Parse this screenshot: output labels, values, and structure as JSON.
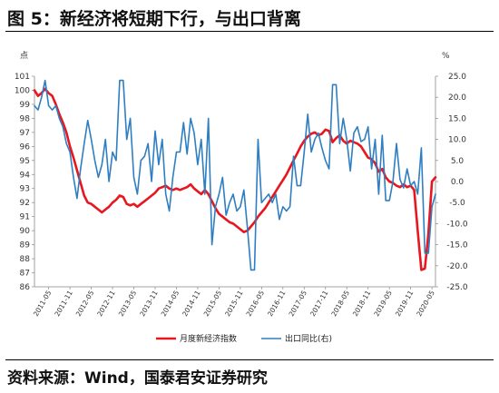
{
  "header": {
    "title": "图 5：新经济将短期下行，与出口背离"
  },
  "footer": {
    "source": "资料来源：Wind，国泰君安证券研究"
  },
  "chart_data": {
    "type": "line",
    "left_axis": {
      "unit_label": "点",
      "range": [
        86,
        101
      ],
      "ticks": [
        "86",
        "87",
        "88",
        "89",
        "90",
        "91",
        "92",
        "93",
        "94",
        "95",
        "96",
        "97",
        "98",
        "99",
        "100",
        "101"
      ]
    },
    "right_axis": {
      "unit_label": "%",
      "range": [
        -25,
        25
      ],
      "ticks": [
        "25.0",
        "20.0",
        "15.0",
        "10.0",
        "5.0",
        "0.0",
        "-5.0",
        "-10.0",
        "-15.0",
        "-20.0",
        "-25.0"
      ]
    },
    "x_tick_labels": [
      "2011-05",
      "2011-11",
      "2012-05",
      "2012-11",
      "2013-05",
      "2013-11",
      "2014-05",
      "2014-11",
      "2015-05",
      "2015-11",
      "2016-05",
      "2016-11",
      "2017-05",
      "2017-11",
      "2018-05",
      "2018-11",
      "2019-05",
      "2019-11",
      "2020-05"
    ],
    "x_range": [
      "2011-01",
      "2020-06"
    ],
    "series": [
      {
        "name": "月度新经济指数",
        "axis": "left",
        "color": "#e8161e",
        "points": [
          [
            "2011-01",
            100.0
          ],
          [
            "2011-02",
            99.6
          ],
          [
            "2011-03",
            99.8
          ],
          [
            "2011-04",
            100.1
          ],
          [
            "2011-05",
            99.8
          ],
          [
            "2011-06",
            99.6
          ],
          [
            "2011-07",
            99.0
          ],
          [
            "2011-08",
            98.3
          ],
          [
            "2011-09",
            97.7
          ],
          [
            "2011-10",
            97.0
          ],
          [
            "2011-11",
            96.0
          ],
          [
            "2011-12",
            95.2
          ],
          [
            "2012-01",
            94.3
          ],
          [
            "2012-02",
            93.4
          ],
          [
            "2012-03",
            92.5
          ],
          [
            "2012-04",
            92.0
          ],
          [
            "2012-05",
            91.9
          ],
          [
            "2012-06",
            91.7
          ],
          [
            "2012-07",
            91.5
          ],
          [
            "2012-08",
            91.3
          ],
          [
            "2012-09",
            91.5
          ],
          [
            "2012-10",
            91.7
          ],
          [
            "2012-11",
            92.0
          ],
          [
            "2012-12",
            92.2
          ],
          [
            "2013-01",
            92.5
          ],
          [
            "2013-02",
            92.4
          ],
          [
            "2013-03",
            91.9
          ],
          [
            "2013-04",
            91.8
          ],
          [
            "2013-05",
            91.9
          ],
          [
            "2013-06",
            91.7
          ],
          [
            "2013-07",
            91.9
          ],
          [
            "2013-08",
            92.1
          ],
          [
            "2013-09",
            92.3
          ],
          [
            "2013-10",
            92.5
          ],
          [
            "2013-11",
            92.7
          ],
          [
            "2013-12",
            93.0
          ],
          [
            "2014-01",
            93.1
          ],
          [
            "2014-02",
            93.2
          ],
          [
            "2014-03",
            93.0
          ],
          [
            "2014-04",
            92.9
          ],
          [
            "2014-05",
            93.0
          ],
          [
            "2014-06",
            92.9
          ],
          [
            "2014-07",
            93.0
          ],
          [
            "2014-08",
            93.1
          ],
          [
            "2014-09",
            93.3
          ],
          [
            "2014-10",
            93.0
          ],
          [
            "2014-11",
            92.8
          ],
          [
            "2014-12",
            92.6
          ],
          [
            "2015-01",
            92.9
          ],
          [
            "2015-02",
            92.6
          ],
          [
            "2015-03",
            92.1
          ],
          [
            "2015-04",
            91.6
          ],
          [
            "2015-05",
            91.2
          ],
          [
            "2015-06",
            91.0
          ],
          [
            "2015-07",
            90.8
          ],
          [
            "2015-08",
            90.6
          ],
          [
            "2015-09",
            90.5
          ],
          [
            "2015-10",
            90.3
          ],
          [
            "2015-11",
            90.1
          ],
          [
            "2015-12",
            89.9
          ],
          [
            "2016-01",
            90.0
          ],
          [
            "2016-02",
            90.3
          ],
          [
            "2016-03",
            90.6
          ],
          [
            "2016-04",
            91.0
          ],
          [
            "2016-05",
            91.3
          ],
          [
            "2016-06",
            91.6
          ],
          [
            "2016-07",
            92.0
          ],
          [
            "2016-08",
            92.4
          ],
          [
            "2016-09",
            92.8
          ],
          [
            "2016-10",
            93.2
          ],
          [
            "2016-11",
            93.6
          ],
          [
            "2016-12",
            94.0
          ],
          [
            "2017-01",
            94.5
          ],
          [
            "2017-02",
            95.0
          ],
          [
            "2017-03",
            95.5
          ],
          [
            "2017-04",
            96.0
          ],
          [
            "2017-05",
            96.4
          ],
          [
            "2017-06",
            96.7
          ],
          [
            "2017-07",
            96.9
          ],
          [
            "2017-08",
            97.0
          ],
          [
            "2017-09",
            96.8
          ],
          [
            "2017-10",
            96.9
          ],
          [
            "2017-11",
            97.2
          ],
          [
            "2017-12",
            97.1
          ],
          [
            "2018-01",
            96.3
          ],
          [
            "2018-02",
            96.6
          ],
          [
            "2018-03",
            96.8
          ],
          [
            "2018-04",
            96.4
          ],
          [
            "2018-05",
            96.2
          ],
          [
            "2018-06",
            96.4
          ],
          [
            "2018-07",
            96.3
          ],
          [
            "2018-08",
            96.2
          ],
          [
            "2018-09",
            96.0
          ],
          [
            "2018-10",
            95.6
          ],
          [
            "2018-11",
            95.2
          ],
          [
            "2018-12",
            95.1
          ],
          [
            "2019-01",
            94.8
          ],
          [
            "2019-02",
            94.2
          ],
          [
            "2019-03",
            94.4
          ],
          [
            "2019-04",
            93.8
          ],
          [
            "2019-05",
            93.5
          ],
          [
            "2019-06",
            93.4
          ],
          [
            "2019-07",
            93.2
          ],
          [
            "2019-08",
            93.1
          ],
          [
            "2019-09",
            93.3
          ],
          [
            "2019-10",
            93.1
          ],
          [
            "2019-11",
            93.2
          ],
          [
            "2019-12",
            92.9
          ],
          [
            "2020-01",
            90.0
          ],
          [
            "2020-02",
            87.2
          ],
          [
            "2020-03",
            87.3
          ],
          [
            "2020-04",
            89.8
          ],
          [
            "2020-05",
            93.5
          ],
          [
            "2020-06",
            93.8
          ]
        ]
      },
      {
        "name": "出口同比(右)",
        "axis": "right",
        "color": "#2e7ec2",
        "points": [
          [
            "2011-01",
            18.0
          ],
          [
            "2011-02",
            17.0
          ],
          [
            "2011-03",
            20.0
          ],
          [
            "2011-04",
            24.0
          ],
          [
            "2011-05",
            18.0
          ],
          [
            "2011-06",
            17.0
          ],
          [
            "2011-07",
            18.0
          ],
          [
            "2011-08",
            15.0
          ],
          [
            "2011-09",
            13.0
          ],
          [
            "2011-10",
            9.0
          ],
          [
            "2011-11",
            7.0
          ],
          [
            "2011-12",
            1.0
          ],
          [
            "2012-01",
            -4.0
          ],
          [
            "2012-02",
            3.0
          ],
          [
            "2012-03",
            9.0
          ],
          [
            "2012-04",
            14.5
          ],
          [
            "2012-05",
            10.0
          ],
          [
            "2012-06",
            5.0
          ],
          [
            "2012-07",
            1.0
          ],
          [
            "2012-08",
            4.0
          ],
          [
            "2012-09",
            10.0
          ],
          [
            "2012-10",
            0.0
          ],
          [
            "2012-11",
            7.0
          ],
          [
            "2012-12",
            5.0
          ],
          [
            "2013-01",
            24.0
          ],
          [
            "2013-02",
            24.0
          ],
          [
            "2013-03",
            10.0
          ],
          [
            "2013-04",
            15.0
          ],
          [
            "2013-05",
            1.0
          ],
          [
            "2013-06",
            -3.0
          ],
          [
            "2013-07",
            5.0
          ],
          [
            "2013-08",
            6.0
          ],
          [
            "2013-09",
            9.0
          ],
          [
            "2013-10",
            0.0
          ],
          [
            "2013-11",
            12.0
          ],
          [
            "2013-12",
            4.0
          ],
          [
            "2014-01",
            10.0
          ],
          [
            "2014-02",
            -3.0
          ],
          [
            "2014-03",
            -7.0
          ],
          [
            "2014-04",
            1.0
          ],
          [
            "2014-05",
            7.0
          ],
          [
            "2014-06",
            7.0
          ],
          [
            "2014-07",
            14.0
          ],
          [
            "2014-08",
            6.5
          ],
          [
            "2014-09",
            15.0
          ],
          [
            "2014-10",
            11.5
          ],
          [
            "2014-11",
            4.0
          ],
          [
            "2014-12",
            10.0
          ],
          [
            "2015-01",
            -3.0
          ],
          [
            "2015-02",
            15.0
          ],
          [
            "2015-03",
            -15.0
          ],
          [
            "2015-04",
            -6.0
          ],
          [
            "2015-05",
            -3.0
          ],
          [
            "2015-06",
            1.0
          ],
          [
            "2015-07",
            -8.0
          ],
          [
            "2015-08",
            -5.0
          ],
          [
            "2015-09",
            -3.0
          ],
          [
            "2015-10",
            -7.0
          ],
          [
            "2015-11",
            -6.0
          ],
          [
            "2015-12",
            -2.0
          ],
          [
            "2016-01",
            -11.0
          ],
          [
            "2016-02",
            -21.0
          ],
          [
            "2016-03",
            -21.0
          ],
          [
            "2016-04",
            10.0
          ],
          [
            "2016-05",
            -5.0
          ],
          [
            "2016-06",
            -4.0
          ],
          [
            "2016-07",
            -3.0
          ],
          [
            "2016-08",
            -5.0
          ],
          [
            "2016-09",
            -3.0
          ],
          [
            "2016-10",
            -9.0
          ],
          [
            "2016-11",
            -6.0
          ],
          [
            "2016-12",
            -7.0
          ],
          [
            "2017-01",
            -6.0
          ],
          [
            "2017-02",
            6.0
          ],
          [
            "2017-03",
            -1.0
          ],
          [
            "2017-04",
            -1.0
          ],
          [
            "2017-05",
            7.0
          ],
          [
            "2017-06",
            16.0
          ],
          [
            "2017-07",
            7.0
          ],
          [
            "2017-08",
            10.0
          ],
          [
            "2017-09",
            11.5
          ],
          [
            "2017-10",
            8.0
          ],
          [
            "2017-11",
            5.0
          ],
          [
            "2017-12",
            3.0
          ],
          [
            "2018-01",
            23.0
          ],
          [
            "2018-02",
            23.0
          ],
          [
            "2018-03",
            9.0
          ],
          [
            "2018-04",
            15.0
          ],
          [
            "2018-05",
            10.0
          ],
          [
            "2018-06",
            2.5
          ],
          [
            "2018-07",
            11.5
          ],
          [
            "2018-08",
            13.0
          ],
          [
            "2018-09",
            9.5
          ],
          [
            "2018-10",
            10.0
          ],
          [
            "2018-11",
            13.0
          ],
          [
            "2018-12",
            3.0
          ],
          [
            "2019-01",
            10.0
          ],
          [
            "2019-02",
            -3.0
          ],
          [
            "2019-03",
            11.0
          ],
          [
            "2019-04",
            -4.5
          ],
          [
            "2019-05",
            -4.5
          ],
          [
            "2019-06",
            0.0
          ],
          [
            "2019-07",
            9.0
          ],
          [
            "2019-08",
            0.5
          ],
          [
            "2019-09",
            -1.5
          ],
          [
            "2019-10",
            3.0
          ],
          [
            "2019-11",
            -1.0
          ],
          [
            "2019-12",
            0.0
          ],
          [
            "2020-01",
            -3.0
          ],
          [
            "2020-02",
            8.0
          ],
          [
            "2020-03",
            -17.0
          ],
          [
            "2020-04",
            -17.0
          ],
          [
            "2020-05",
            -6.0
          ],
          [
            "2020-06",
            -3.0
          ]
        ]
      }
    ]
  }
}
